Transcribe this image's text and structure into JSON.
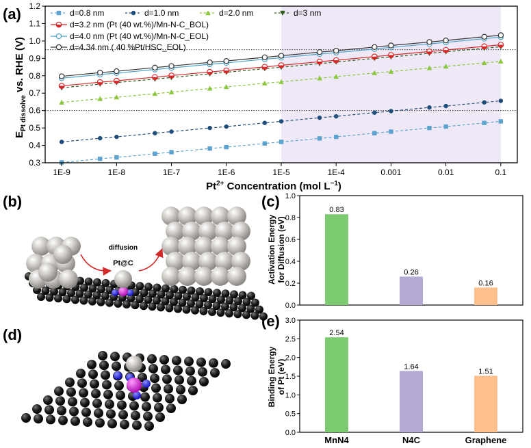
{
  "panel_labels": {
    "a": "(a)",
    "b": "(b)",
    "c": "(c)",
    "d": "(d)",
    "e": "(e)"
  },
  "panel_b": {
    "diffusion_label": "diffusion",
    "species_label": "Pt@C"
  },
  "colors": {
    "shade": "#efe9f7",
    "bar_mnn4": "#7ccb70",
    "bar_n4c": "#b4a9d3",
    "bar_graphene": "#fdc08c",
    "carbon": "#1e1e1e",
    "platinum": "#c8c5c0",
    "nitrogen": "#2626e0",
    "manganese": "#e020e0",
    "arrow": "#d32a2a"
  },
  "chart_data": [
    {
      "type": "line",
      "panel": "a",
      "x": [
        1e-09,
        1e-08,
        1e-07,
        1e-06,
        1e-05,
        0.0001,
        0.001,
        0.01,
        0.1
      ],
      "x_tick_labels": [
        "1E-9",
        "1E-8",
        "1E-7",
        "1E-6",
        "1E-5",
        "1E-4",
        "0.001",
        "0.01",
        "0.1"
      ],
      "x_scale": "log",
      "xlim": [
        5e-10,
        0.2
      ],
      "ylim": [
        0.3,
        1.2
      ],
      "y_ticks": [
        0.3,
        0.4,
        0.5,
        0.6,
        0.7,
        0.8,
        0.9,
        1.0,
        1.1,
        1.2
      ],
      "y_tick_labels": [
        "0.3",
        "0.4",
        "0.5",
        "0.6",
        "0.7",
        "0.8",
        "0.9",
        "1.0",
        "1.1",
        "1.2"
      ],
      "xlabel_main": "Pt",
      "xlabel_sup": "2+",
      "xlabel_rest": " Concentration (mol L",
      "xlabel_sup2": "−1",
      "xlabel_close": ")",
      "ylabel_main": "E",
      "ylabel_sub": "Pt dissolve",
      "ylabel_rest": " vs. RHE (V)",
      "reference_lines": [
        0.95,
        0.6
      ],
      "shaded_region": [
        1e-05,
        0.1
      ],
      "legend_position": "top-left",
      "series": [
        {
          "name": "d=0.8 nm",
          "color": "#5ea3d0",
          "marker": "square",
          "dashed": true,
          "values": [
            0.302,
            0.331,
            0.361,
            0.39,
            0.42,
            0.449,
            0.479,
            0.508,
            0.538
          ],
          "points_x": [
            1e-09,
            5e-09,
            1e-08,
            5e-08,
            1e-07,
            5e-07,
            1e-06,
            5e-06,
            1e-05,
            5e-05,
            0.0001,
            0.0005,
            0.001,
            0.005,
            0.01,
            0.05,
            0.1
          ],
          "points_y": [
            0.302,
            0.323,
            0.331,
            0.352,
            0.361,
            0.382,
            0.39,
            0.411,
            0.42,
            0.44,
            0.449,
            0.47,
            0.479,
            0.5,
            0.508,
            0.529,
            0.538
          ]
        },
        {
          "name": "d=1.0 nm",
          "color": "#1f4e7a",
          "marker": "circle",
          "dashed": true,
          "values": [
            0.42,
            0.449,
            0.479,
            0.508,
            0.538,
            0.567,
            0.597,
            0.626,
            0.656
          ],
          "points_x": [
            1e-09,
            5e-09,
            1e-08,
            5e-08,
            1e-07,
            5e-07,
            1e-06,
            5e-06,
            1e-05,
            5e-05,
            0.0001,
            0.0005,
            0.001,
            0.005,
            0.01,
            0.05,
            0.1
          ],
          "points_y": [
            0.42,
            0.441,
            0.449,
            0.47,
            0.479,
            0.5,
            0.508,
            0.529,
            0.538,
            0.559,
            0.567,
            0.588,
            0.597,
            0.618,
            0.626,
            0.647,
            0.656
          ]
        },
        {
          "name": "d=2.0 nm",
          "color": "#8cc63f",
          "marker": "triangle",
          "dashed": true,
          "values": [
            0.647,
            0.677,
            0.706,
            0.736,
            0.765,
            0.795,
            0.824,
            0.854,
            0.883
          ],
          "points_x": [
            1e-09,
            5e-09,
            1e-08,
            5e-08,
            1e-07,
            5e-07,
            1e-06,
            5e-06,
            1e-05,
            5e-05,
            0.0001,
            0.0005,
            0.001,
            0.005,
            0.01,
            0.05,
            0.1
          ],
          "points_y": [
            0.647,
            0.668,
            0.677,
            0.697,
            0.706,
            0.727,
            0.736,
            0.757,
            0.765,
            0.786,
            0.795,
            0.816,
            0.824,
            0.845,
            0.854,
            0.874,
            0.883
          ]
        },
        {
          "name": "d=3 nm",
          "color": "#2f5e1e",
          "marker": "triangle-down",
          "dashed": true,
          "values": [
            0.731,
            0.761,
            0.79,
            0.82,
            0.849,
            0.879,
            0.908,
            0.938,
            0.967
          ],
          "points_x": [
            1e-09,
            5e-09,
            1e-08,
            5e-08,
            1e-07,
            5e-07,
            1e-06,
            5e-06,
            1e-05,
            5e-05,
            0.0001,
            0.0005,
            0.001,
            0.005,
            0.01,
            0.05,
            0.1
          ],
          "points_y": [
            0.731,
            0.752,
            0.761,
            0.781,
            0.79,
            0.811,
            0.82,
            0.841,
            0.849,
            0.87,
            0.879,
            0.9,
            0.908,
            0.929,
            0.938,
            0.958,
            0.967
          ]
        },
        {
          "name": "d=3.2 nm (Pt (40 wt.%)/Mn-N-C_BOL)",
          "color": "#d62728",
          "marker": "half-circle",
          "dashed": false,
          "values": [
            0.742,
            0.771,
            0.801,
            0.83,
            0.86,
            0.889,
            0.919,
            0.948,
            0.978
          ],
          "points_x": [
            1e-09,
            5e-09,
            1e-08,
            5e-08,
            1e-07,
            5e-07,
            1e-06,
            5e-06,
            1e-05,
            5e-05,
            0.0001,
            0.0005,
            0.001,
            0.005,
            0.01,
            0.05,
            0.1
          ],
          "points_y": [
            0.742,
            0.763,
            0.771,
            0.792,
            0.801,
            0.822,
            0.83,
            0.851,
            0.86,
            0.881,
            0.889,
            0.91,
            0.919,
            0.939,
            0.948,
            0.969,
            0.978
          ]
        },
        {
          "name": "d=4.0 nm (Pt (40 wt.%)/Mn-N-C_EOL)",
          "color": "#4aa3c8",
          "marker": "circle-open",
          "dashed": false,
          "values": [
            0.786,
            0.815,
            0.845,
            0.874,
            0.904,
            0.933,
            0.963,
            0.992,
            1.022
          ],
          "points_x": [
            1e-09,
            5e-09,
            1e-08,
            5e-08,
            1e-07,
            5e-07,
            1e-06,
            5e-06,
            1e-05,
            5e-05,
            0.0001,
            0.0005,
            0.001,
            0.005,
            0.01,
            0.05,
            0.1
          ],
          "points_y": [
            0.786,
            0.807,
            0.815,
            0.836,
            0.845,
            0.866,
            0.874,
            0.895,
            0.904,
            0.925,
            0.933,
            0.954,
            0.963,
            0.983,
            0.992,
            1.013,
            1.022
          ]
        },
        {
          "name": "d=4.34 nm ( 40 %Pt/HSC_EOL)",
          "color": "#333333",
          "marker": "circle-open",
          "dashed": false,
          "values": [
            0.797,
            0.826,
            0.856,
            0.885,
            0.915,
            0.944,
            0.974,
            1.003,
            1.033
          ],
          "points_x": [
            1e-09,
            5e-09,
            1e-08,
            5e-08,
            1e-07,
            5e-07,
            1e-06,
            5e-06,
            1e-05,
            5e-05,
            0.0001,
            0.0005,
            0.001,
            0.005,
            0.01,
            0.05,
            0.1
          ],
          "points_y": [
            0.797,
            0.818,
            0.826,
            0.847,
            0.856,
            0.877,
            0.885,
            0.906,
            0.915,
            0.936,
            0.944,
            0.965,
            0.974,
            0.994,
            1.003,
            1.024,
            1.033
          ]
        }
      ]
    },
    {
      "type": "bar",
      "panel": "c",
      "categories": [
        "MnN4",
        "N4C",
        "Graphene"
      ],
      "values": [
        0.83,
        0.26,
        0.16
      ],
      "value_labels": [
        "0.83",
        "0.26",
        "0.16"
      ],
      "ylabel_line1": "Activation Energy",
      "ylabel_line2": "for Diffusion (eV)",
      "ylim": [
        0,
        1.0
      ],
      "y_tick_labels": [
        "0.0",
        "0.2",
        "0.4",
        "0.6",
        "0.8",
        "1.0"
      ]
    },
    {
      "type": "bar",
      "panel": "e",
      "categories": [
        "MnN4",
        "N4C",
        "Graphene"
      ],
      "category_labels": [
        "MnN4",
        "N4C",
        "Graphene"
      ],
      "values": [
        2.54,
        1.64,
        1.51
      ],
      "value_labels": [
        "2.54",
        "1.64",
        "1.51"
      ],
      "ylabel_line1": "Binding Energy",
      "ylabel_line2": "of Pt (eV)",
      "ylim": [
        0,
        3.0
      ],
      "y_tick_labels": [
        "0.0",
        "0.5",
        "1.0",
        "1.5",
        "2.0",
        "2.5",
        "3.0"
      ]
    }
  ]
}
